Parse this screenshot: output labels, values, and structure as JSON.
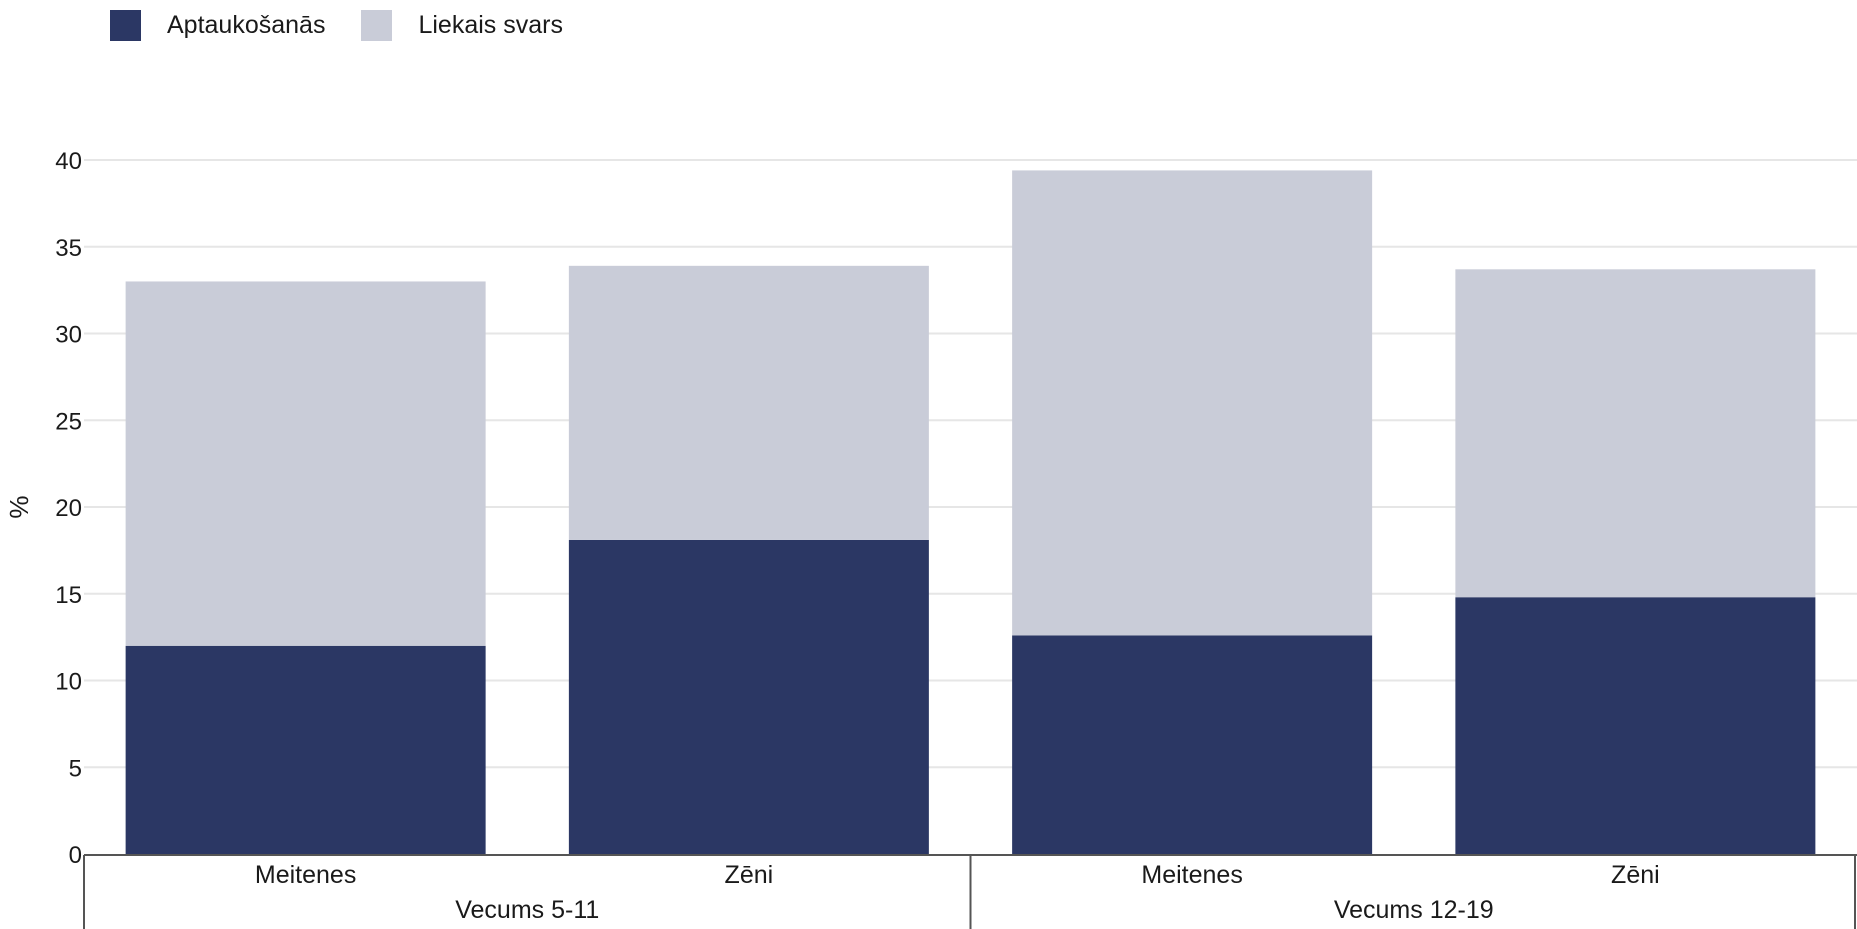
{
  "chart_data": {
    "type": "bar",
    "stacked": true,
    "ylabel": "%",
    "ylim": [
      0,
      40
    ],
    "yticks": [
      0,
      5,
      10,
      15,
      20,
      25,
      30,
      35,
      40
    ],
    "grid": true,
    "legend_position": "top-left",
    "groups": [
      {
        "label": "Vecums 5-11",
        "categories": [
          "Meitenes",
          "Zēni"
        ]
      },
      {
        "label": "Vecums 12-19",
        "categories": [
          "Meitenes",
          "Zēni"
        ]
      }
    ],
    "categories": [
      "Meitenes",
      "Zēni",
      "Meitenes",
      "Zēni"
    ],
    "series": [
      {
        "name": "Aptaukošanās",
        "color": "#2b3764",
        "values": [
          12.0,
          18.1,
          12.6,
          14.8
        ]
      },
      {
        "name": "Liekais svars",
        "color": "#c9ccd8",
        "values": [
          21.0,
          15.8,
          26.8,
          18.9
        ]
      }
    ]
  }
}
